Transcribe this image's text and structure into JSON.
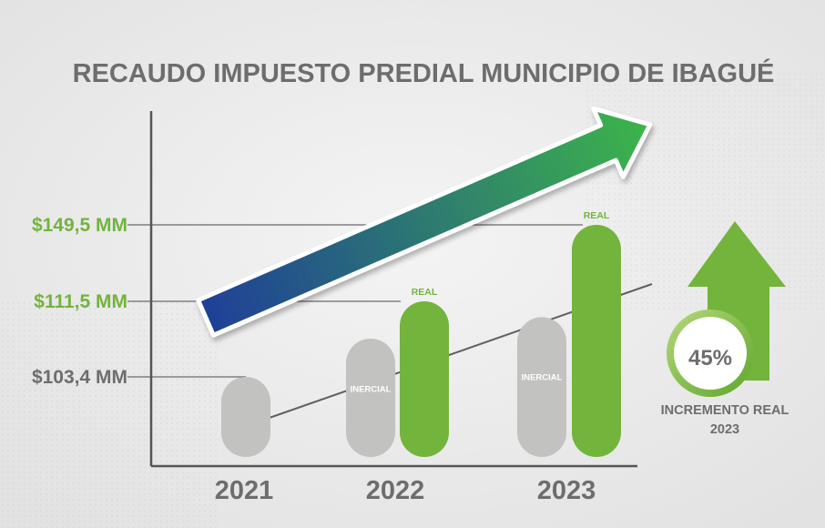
{
  "colors": {
    "background": "#ebebeb",
    "title": "#6d6d6d",
    "axis": "#555555",
    "inercial_bar": "#c2c2c0",
    "real_bar": "#72b43c",
    "value_label_green": "#72b43c",
    "value_label_gray": "#6d6d6d",
    "arrow_start": "#1f3f98",
    "arrow_end": "#3cb54a",
    "up_arrow": "#72b43c"
  },
  "chart_data": {
    "type": "bar",
    "title": "RECAUDO IMPUESTO PREDIAL MUNICIPIO DE IBAGUÉ",
    "categories": [
      "2021",
      "2022",
      "2023"
    ],
    "y_unit": "MM",
    "y_reference_values": [
      {
        "label": "$149,5 MM",
        "value": 149.5,
        "color": "green"
      },
      {
        "label": "$111,5 MM",
        "value": 111.5,
        "color": "green"
      },
      {
        "label": "$103,4 MM",
        "value": 103.4,
        "color": "gray"
      }
    ],
    "bars": [
      {
        "category": "2021",
        "kind": "inercial",
        "value": 103.4,
        "label": ""
      },
      {
        "category": "2022",
        "kind": "inercial",
        "value": 107.5,
        "label": "INERCIAL"
      },
      {
        "category": "2022",
        "kind": "real",
        "value": 111.5,
        "label": "REAL"
      },
      {
        "category": "2023",
        "kind": "inercial",
        "value": 109.8,
        "label": "INERCIAL"
      },
      {
        "category": "2023",
        "kind": "real",
        "value": 149.5,
        "label": "REAL"
      }
    ]
  },
  "badge": {
    "percent": "45%",
    "caption_line1": "INCREMENTO REAL",
    "caption_line2": "2023"
  }
}
